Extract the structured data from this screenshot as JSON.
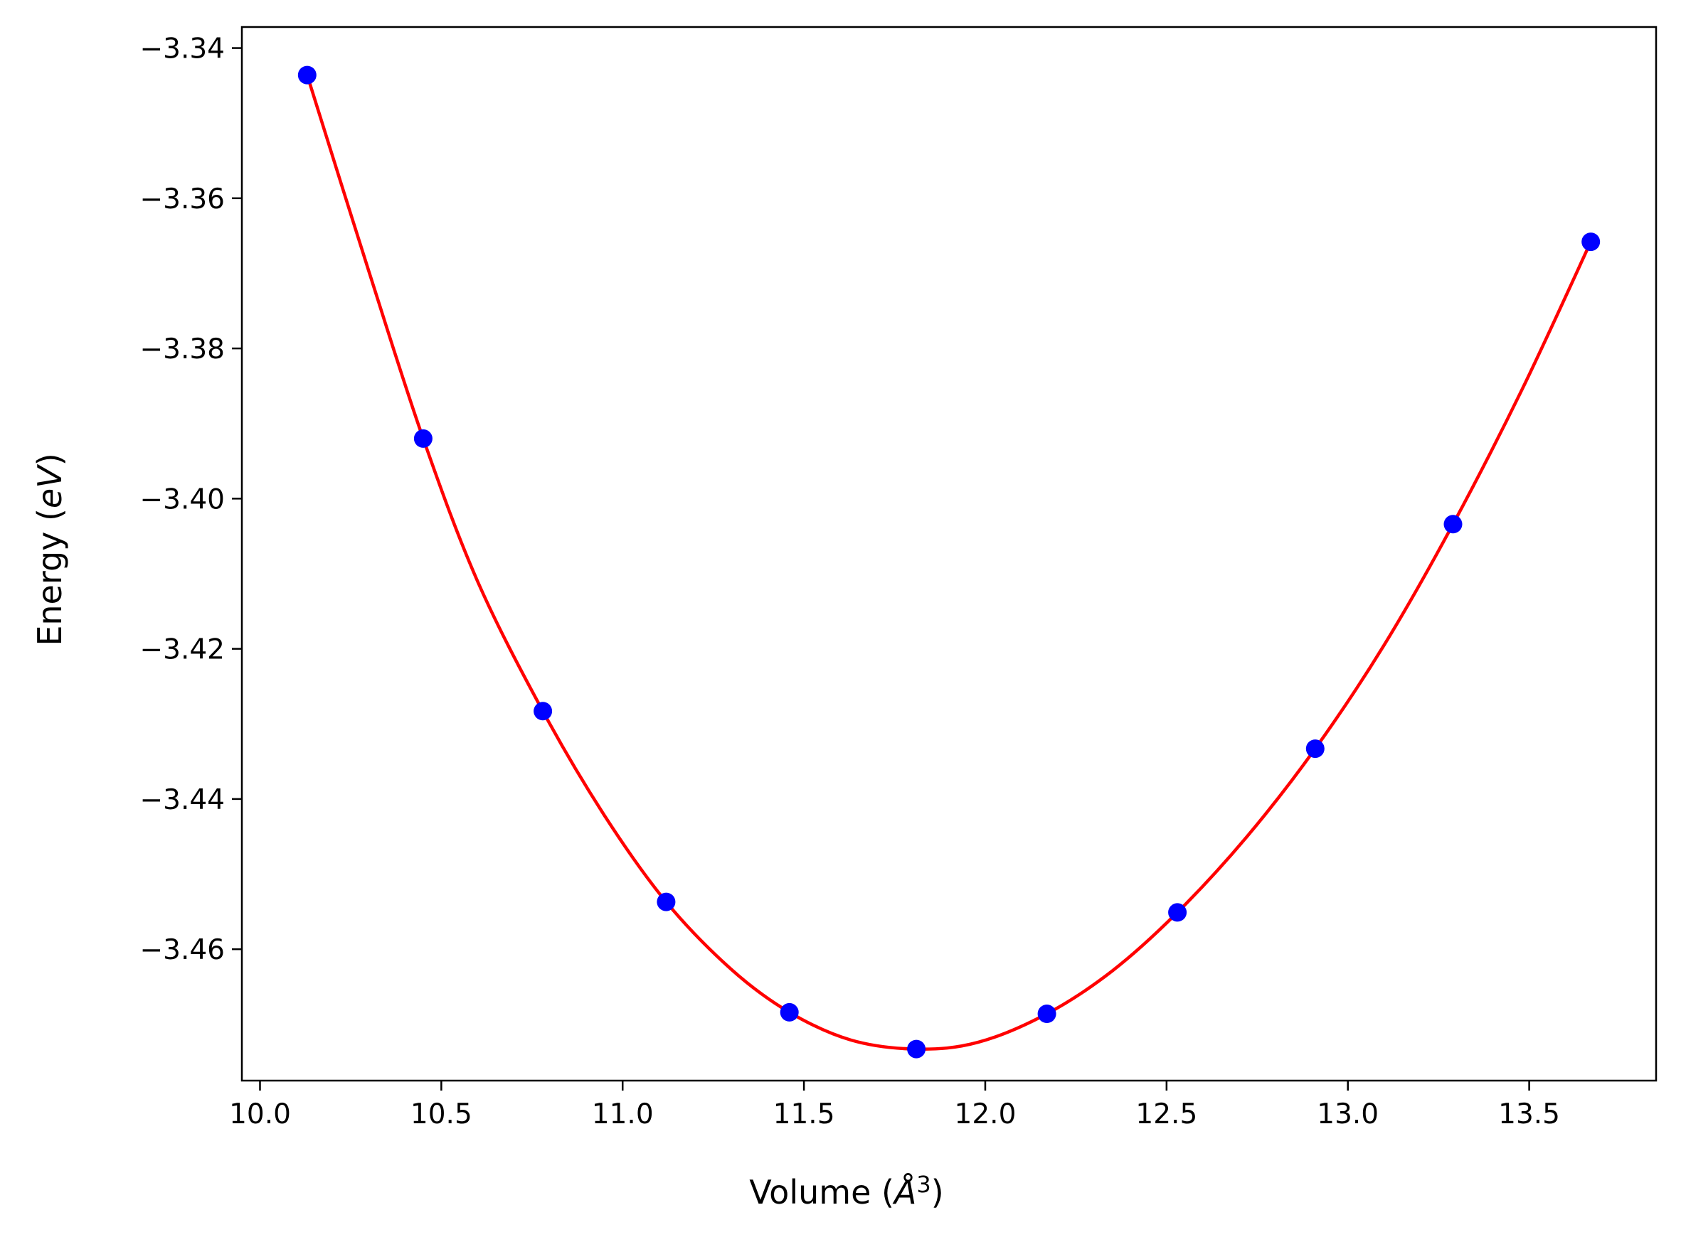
{
  "chart_data": {
    "type": "scatter",
    "xlabel": {
      "pre": "Volume (",
      "var": "Å",
      "sup": "3",
      "post": ")"
    },
    "ylabel": {
      "pre": "Energy (",
      "var": "eV",
      "post": ")"
    },
    "xlim": [
      9.95,
      13.85
    ],
    "ylim": [
      -3.4775,
      -3.3372
    ],
    "xticks": [
      10.0,
      10.5,
      11.0,
      11.5,
      12.0,
      12.5,
      13.0,
      13.5
    ],
    "xtick_labels": [
      "10.0",
      "10.5",
      "11.0",
      "11.5",
      "12.0",
      "12.5",
      "13.0",
      "13.5"
    ],
    "yticks": [
      -3.34,
      -3.36,
      -3.38,
      -3.4,
      -3.42,
      -3.44,
      -3.46
    ],
    "ytick_labels": [
      "−3.34",
      "−3.36",
      "−3.38",
      "−3.40",
      "−3.42",
      "−3.44",
      "−3.46"
    ],
    "grid": false,
    "points": {
      "color": "#0000ff",
      "x": [
        10.13,
        10.45,
        10.78,
        11.12,
        11.46,
        11.81,
        12.17,
        12.53,
        12.91,
        13.29,
        13.67
      ],
      "y": [
        -3.3436,
        -3.392,
        -3.4283,
        -3.4537,
        -3.4684,
        -3.4733,
        -3.4686,
        -3.4551,
        -3.4333,
        -3.4034,
        -3.3658
      ]
    },
    "fit_curve": {
      "color": "#ff0000",
      "x": [
        10.13,
        10.3,
        10.45,
        10.6,
        10.78,
        10.95,
        11.12,
        11.3,
        11.46,
        11.63,
        11.81,
        11.98,
        12.17,
        12.35,
        12.53,
        12.72,
        12.91,
        13.1,
        13.29,
        13.48,
        13.67
      ],
      "y": [
        -3.3436,
        -3.3697,
        -3.392,
        -3.411,
        -3.4283,
        -3.4422,
        -3.4537,
        -3.4627,
        -3.4684,
        -3.4721,
        -3.4733,
        -3.4724,
        -3.4686,
        -3.4629,
        -3.4551,
        -3.4451,
        -3.4333,
        -3.4195,
        -3.4034,
        -3.3855,
        -3.3658
      ]
    }
  }
}
